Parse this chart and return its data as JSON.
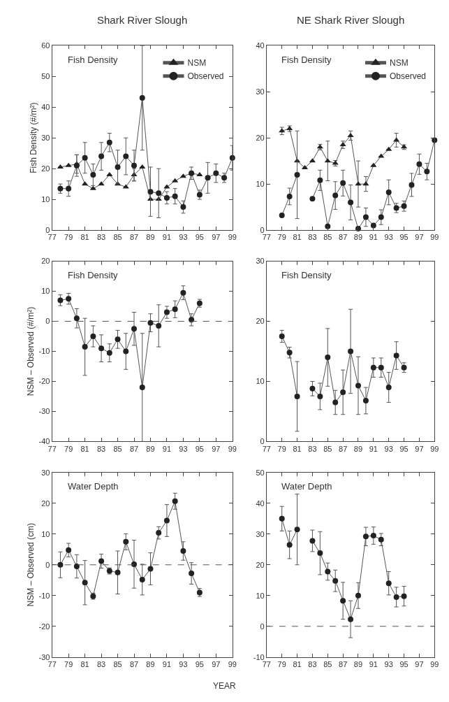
{
  "chart_data": [
    {
      "type": "line",
      "title": "Shark River Slough",
      "ylabel": "Fish Density (#/m²)",
      "annotations": [
        "Fish Density"
      ],
      "xlim": [
        77,
        99
      ],
      "xticks": [
        77,
        79,
        81,
        83,
        85,
        87,
        89,
        91,
        93,
        95,
        97,
        99
      ],
      "ylim": [
        0,
        60
      ],
      "yticks": [
        0,
        10,
        20,
        30,
        40,
        50,
        60
      ],
      "legend": "top right",
      "line_style": "solid",
      "series": [
        {
          "name": "NSM",
          "color": "#222222",
          "marker": "triangle",
          "x": [
            78,
            79,
            80,
            81,
            82,
            83,
            84,
            85,
            86,
            87,
            88,
            89,
            90,
            91,
            92,
            93,
            94,
            95
          ],
          "values": [
            20.5,
            21,
            21.5,
            15,
            13.5,
            15,
            18,
            15,
            14,
            18,
            20.5,
            10,
            10,
            14,
            16,
            17.5,
            18.5,
            18
          ],
          "errors": [
            null,
            null,
            3,
            null,
            null,
            null,
            null,
            null,
            null,
            2,
            null,
            null,
            null,
            null,
            null,
            null,
            null,
            null
          ]
        },
        {
          "name": "Observed",
          "color": "#222222",
          "marker": "circle",
          "x": [
            78,
            79,
            80,
            81,
            82,
            83,
            84,
            85,
            86,
            87,
            88,
            89,
            90,
            91,
            92,
            93,
            94,
            95,
            96,
            97,
            98,
            99
          ],
          "values": [
            13.5,
            13.5,
            21,
            23.5,
            18,
            24,
            28.5,
            20.5,
            24,
            21,
            43,
            12.5,
            12,
            10.5,
            11,
            7.5,
            18.5,
            11.5,
            17,
            18.5,
            17,
            23.5
          ],
          "errors": [
            1.5,
            2.5,
            3.5,
            5,
            3.5,
            4.5,
            3,
            5.5,
            6,
            5,
            17,
            8,
            8,
            2,
            2.5,
            2,
            2,
            1.5,
            5,
            3,
            1.5,
            4
          ]
        }
      ]
    },
    {
      "type": "line",
      "title": "NE Shark River Slough",
      "annotations": [
        "Fish Density"
      ],
      "xlim": [
        77,
        99
      ],
      "xticks": [
        77,
        79,
        81,
        83,
        85,
        87,
        89,
        91,
        93,
        95,
        97,
        99
      ],
      "ylim": [
        0,
        40
      ],
      "yticks": [
        0,
        10,
        20,
        30,
        40
      ],
      "legend": "top right",
      "line_style": "solid",
      "series": [
        {
          "name": "NSM",
          "color": "#222222",
          "marker": "triangle",
          "x": [
            79,
            80,
            81,
            82,
            83,
            84,
            85,
            86,
            87,
            88,
            89,
            90,
            91,
            92,
            93,
            94,
            95
          ],
          "values": [
            21.5,
            22,
            15,
            13.5,
            15,
            18,
            15,
            14.5,
            18.5,
            20.5,
            10,
            10,
            14,
            16,
            17.5,
            19.5,
            18
          ],
          "errors": [
            0.8,
            0.6,
            null,
            null,
            null,
            0.6,
            4.3,
            0.6,
            0.8,
            1,
            5,
            1.6,
            null,
            null,
            null,
            1.5,
            0.5
          ]
        },
        {
          "name": "Observed",
          "color": "#222222",
          "marker": "circle",
          "x": [
            79,
            80,
            81,
            82,
            83,
            84,
            85,
            86,
            87,
            88,
            89,
            90,
            91,
            92,
            93,
            94,
            95,
            96,
            97,
            98,
            99
          ],
          "values": [
            3.2,
            7.3,
            12,
            null,
            6.8,
            10.8,
            0.8,
            7.5,
            10.2,
            6,
            0.3,
            2.8,
            1,
            2.8,
            8.2,
            4.8,
            5.2,
            9.8,
            14.3,
            12.7,
            19.5
          ],
          "errors": [
            null,
            1.8,
            9.5,
            null,
            null,
            2.2,
            null,
            3,
            2.8,
            3.8,
            null,
            2,
            null,
            1.6,
            2.7,
            1,
            1.1,
            2.5,
            2.2,
            1.8,
            null
          ]
        }
      ]
    },
    {
      "type": "line",
      "ylabel": "NSM – Observed (#/m²)",
      "annotations": [
        "Fish Density"
      ],
      "xlim": [
        77,
        99
      ],
      "xticks": [
        77,
        79,
        81,
        83,
        85,
        87,
        89,
        91,
        93,
        95,
        97,
        99
      ],
      "ylim": [
        -40,
        20
      ],
      "yticks": [
        -40,
        -30,
        -20,
        -10,
        0,
        10,
        20
      ],
      "line_style": "solid",
      "ref_lines": [
        {
          "axis": "y",
          "value": 0,
          "line_style": "dashed"
        }
      ],
      "series": [
        {
          "color": "#222222",
          "marker": "circle",
          "x": [
            78,
            79,
            80,
            81,
            82,
            83,
            84,
            85,
            86,
            87,
            88,
            89,
            90,
            91,
            92,
            93,
            94,
            95
          ],
          "values": [
            7,
            7.5,
            1,
            -8.5,
            -5,
            -9,
            -10.5,
            -6,
            -10,
            -2.5,
            -22,
            -0.5,
            -1.5,
            3,
            4,
            9.5,
            0.5,
            6
          ],
          "errors": [
            1.8,
            1.8,
            3.2,
            9.5,
            3.5,
            4.5,
            3,
            3,
            6,
            5.5,
            18,
            3,
            7,
            2,
            2.8,
            2.3,
            2,
            1.3
          ]
        }
      ]
    },
    {
      "type": "line",
      "annotations": [
        "Fish Density"
      ],
      "xlim": [
        77,
        99
      ],
      "xticks": [
        77,
        79,
        81,
        83,
        85,
        87,
        89,
        91,
        93,
        95,
        97,
        99
      ],
      "ylim": [
        0,
        30
      ],
      "yticks": [
        0,
        10,
        20,
        30
      ],
      "line_style": "solid",
      "series": [
        {
          "color": "#222222",
          "marker": "circle",
          "x": [
            79,
            80,
            81,
            82,
            83,
            84,
            85,
            86,
            87,
            88,
            89,
            90,
            91,
            92,
            93,
            94,
            95
          ],
          "values": [
            17.5,
            14.8,
            7.5,
            null,
            8.8,
            7.5,
            14,
            6.5,
            8.2,
            15,
            9.3,
            6.8,
            12.3,
            12.3,
            9,
            14.3,
            12.3
          ],
          "errors": [
            1,
            0.9,
            5.8,
            null,
            1.2,
            2.2,
            4.8,
            2,
            3.7,
            7,
            4.8,
            2.2,
            1.6,
            1.6,
            2.5,
            2.3,
            0.8
          ]
        }
      ]
    },
    {
      "type": "line",
      "ylabel": "NSM – Observed (cm)",
      "xlabel": "YEAR",
      "annotations": [
        "Water Depth"
      ],
      "xlim": [
        77,
        99
      ],
      "xticks": [
        77,
        79,
        81,
        83,
        85,
        87,
        89,
        91,
        93,
        95,
        97,
        99
      ],
      "ylim": [
        -30,
        30
      ],
      "yticks": [
        -30,
        -20,
        -10,
        0,
        10,
        20,
        30
      ],
      "line_style": "solid",
      "ref_lines": [
        {
          "axis": "y",
          "value": 0,
          "line_style": "dashed"
        }
      ],
      "series": [
        {
          "color": "#222222",
          "marker": "circle",
          "x": [
            78,
            79,
            80,
            81,
            82,
            83,
            84,
            85,
            86,
            87,
            88,
            89,
            90,
            91,
            92,
            93,
            94,
            95
          ],
          "values": [
            0,
            4.8,
            -0.5,
            -5.8,
            -10.2,
            1.2,
            -2,
            -2.5,
            7.5,
            0.2,
            -4.8,
            -1.3,
            10.4,
            14.4,
            20.7,
            4.5,
            -2.8,
            -9
          ],
          "errors": [
            4.2,
            2.2,
            3.8,
            7.2,
            1,
            2.3,
            1,
            7,
            2.6,
            7.8,
            5,
            5.2,
            2,
            5.2,
            2.6,
            3,
            3.5,
            1.3
          ]
        }
      ]
    },
    {
      "type": "line",
      "annotations": [
        "Water Depth"
      ],
      "xlim": [
        77,
        99
      ],
      "xticks": [
        77,
        79,
        81,
        83,
        85,
        87,
        89,
        91,
        93,
        95,
        97,
        99
      ],
      "ylim": [
        -10,
        50
      ],
      "yticks": [
        -10,
        0,
        10,
        20,
        30,
        40,
        50
      ],
      "line_style": "solid",
      "ref_lines": [
        {
          "axis": "y",
          "value": 0,
          "line_style": "dashed"
        }
      ],
      "series": [
        {
          "color": "#222222",
          "marker": "circle",
          "x": [
            79,
            80,
            81,
            82,
            83,
            84,
            85,
            86,
            87,
            88,
            89,
            90,
            91,
            92,
            93,
            94,
            95
          ],
          "values": [
            35,
            26.5,
            31.5,
            null,
            27.8,
            23.8,
            17.8,
            14.8,
            8.3,
            2.3,
            10,
            29.2,
            29.5,
            28.2,
            14,
            9.5,
            9.8
          ],
          "errors": [
            4,
            4.5,
            11.5,
            null,
            3.5,
            7,
            2.8,
            3.5,
            6,
            6,
            4.2,
            3,
            2.8,
            2,
            3.8,
            3.2,
            3.2
          ]
        }
      ]
    }
  ]
}
